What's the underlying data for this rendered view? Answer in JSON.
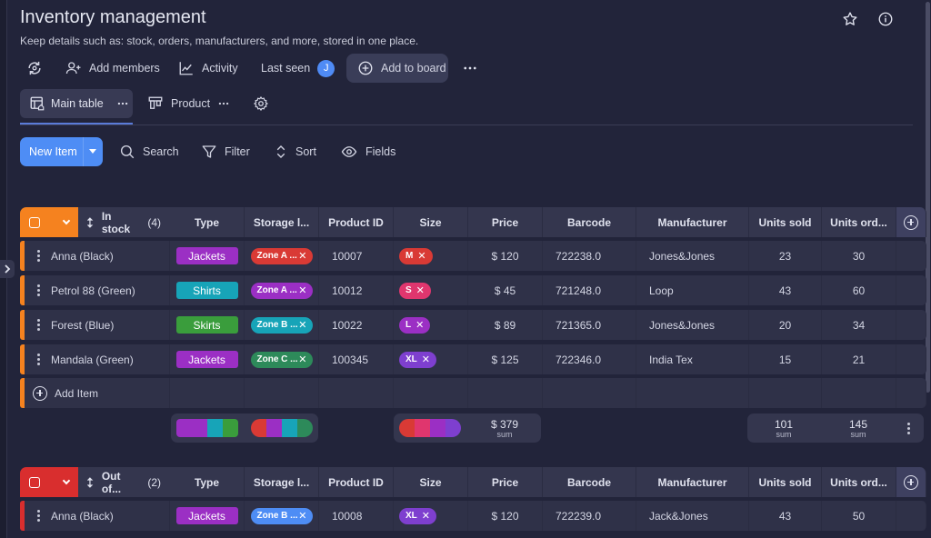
{
  "board": {
    "title": "Inventory management",
    "subtitle": "Keep details such as: stock, orders, manufacturers, and more, stored in one place."
  },
  "toolbar": {
    "add_members": "Add members",
    "activity": "Activity",
    "last_seen": "Last seen",
    "avatar_initial": "J",
    "add_to_board": "Add to board"
  },
  "views": {
    "main_table": "Main table",
    "product": "Product"
  },
  "actions": {
    "new_item": "New Item",
    "search": "Search",
    "filter": "Filter",
    "sort": "Sort",
    "fields": "Fields"
  },
  "columns": [
    "Type",
    "Storage l...",
    "Product ID",
    "Size",
    "Price",
    "Barcode",
    "Manufacturer",
    "Units sold",
    "Units ord..."
  ],
  "groups": [
    {
      "label": "In stock",
      "count": "(4)",
      "color": "#f5821f",
      "rows": [
        {
          "name": "Anna (Black)",
          "type": "Jackets",
          "type_color": "#9b2fc4",
          "storage": "Zone A ...",
          "storage_color": "#d93a35",
          "pid": "10007",
          "size": "M",
          "size_color": "#d93a35",
          "price": "$ 120",
          "barcode": "722238.0",
          "manufacturer": "Jones&Jones",
          "sold": "23",
          "ordered": "30"
        },
        {
          "name": "Petrol 88 (Green)",
          "type": "Shirts",
          "type_color": "#17a4b8",
          "storage": "Zone A ...",
          "storage_color": "#9b2fc4",
          "pid": "10012",
          "size": "S",
          "size_color": "#e0366e",
          "price": "$ 45",
          "barcode": "721248.0",
          "manufacturer": "Loop",
          "sold": "43",
          "ordered": "60"
        },
        {
          "name": "Forest (Blue)",
          "type": "Skirts",
          "type_color": "#3a9d3c",
          "storage": "Zone B ...",
          "storage_color": "#17a4b8",
          "pid": "10022",
          "size": "L",
          "size_color": "#9b2fc4",
          "price": "$ 89",
          "barcode": "721365.0",
          "manufacturer": "Jones&Jones",
          "sold": "20",
          "ordered": "34"
        },
        {
          "name": "Mandala (Green)",
          "type": "Jackets",
          "type_color": "#9b2fc4",
          "storage": "Zone C ...",
          "storage_color": "#2d8a5a",
          "pid": "100345",
          "size": "XL",
          "size_color": "#7e3fcf",
          "price": "$ 125",
          "barcode": "722346.0",
          "manufacturer": "India Tex",
          "sold": "15",
          "ordered": "21"
        }
      ],
      "add_item": "Add Item",
      "summary": {
        "price": "$ 379",
        "sold": "101",
        "ordered": "145",
        "sum_label": "sum",
        "type_swatches": [
          "#9b2fc4",
          "#9b2fc4",
          "#17a4b8",
          "#3a9d3c"
        ],
        "storage_swatches": [
          "#d93a35",
          "#9b2fc4",
          "#17a4b8",
          "#2d8a5a"
        ],
        "size_swatches": [
          "#d93a35",
          "#e0366e",
          "#9b2fc4",
          "#7e3fcf"
        ]
      }
    },
    {
      "label": "Out of...",
      "count": "(2)",
      "color": "#d92e2e",
      "rows": [
        {
          "name": "Anna (Black)",
          "type": "Jackets",
          "type_color": "#9b2fc4",
          "storage": "Zone B ...",
          "storage_color": "#4e8df5",
          "pid": "10008",
          "size": "XL",
          "size_color": "#7e3fcf",
          "price": "$ 120",
          "barcode": "722239.0",
          "manufacturer": "Jack&Jones",
          "sold": "43",
          "ordered": "50"
        }
      ]
    }
  ]
}
